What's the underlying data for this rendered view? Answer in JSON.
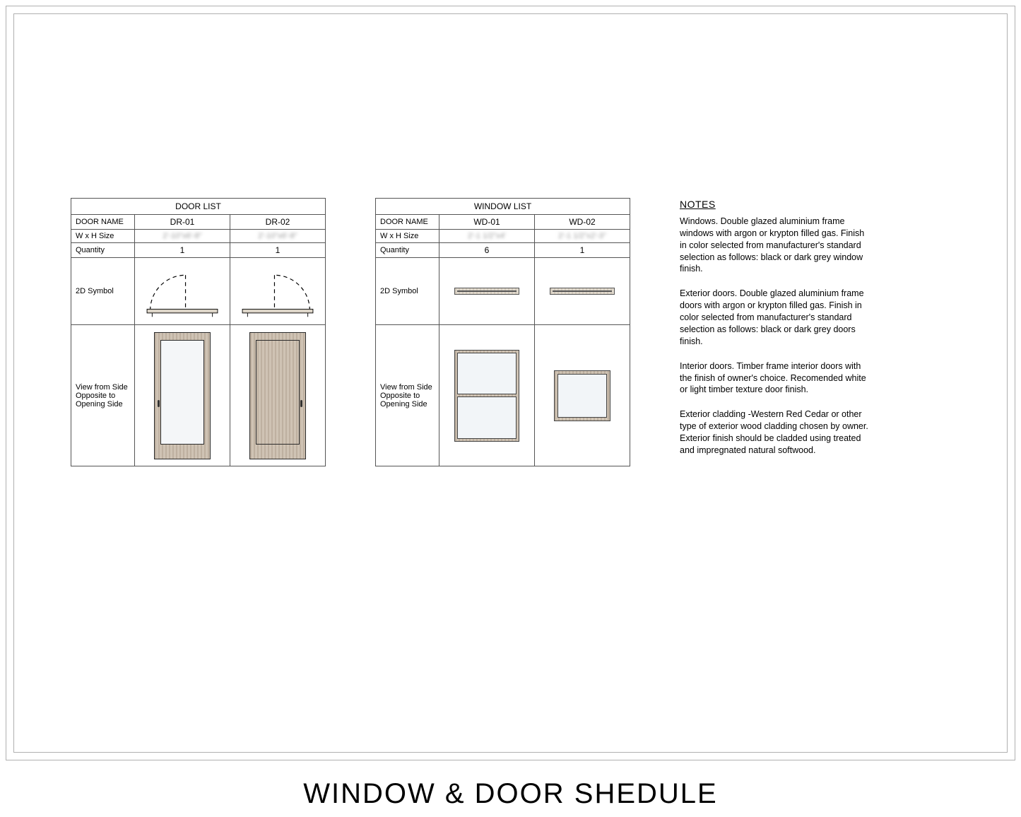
{
  "page_title": "WINDOW & DOOR SHEDULE",
  "door_table": {
    "title": "DOOR LIST",
    "row_labels": {
      "name": "DOOR NAME",
      "size": "W x H Size",
      "qty": "Quantity",
      "symbol": "2D Symbol",
      "view": "View from Side Opposite to Opening Side"
    },
    "columns": [
      {
        "name": "DR-01",
        "size": "2'-10\"x6'-8\"",
        "qty": "1",
        "swing": "left",
        "glass": true
      },
      {
        "name": "DR-02",
        "size": "2'-10\"x6'-8\"",
        "qty": "1",
        "swing": "right",
        "glass": false
      }
    ]
  },
  "window_table": {
    "title": "WINDOW LIST",
    "row_labels": {
      "name": "DOOR NAME",
      "size": "W x H Size",
      "qty": "Quantity",
      "symbol": "2D Symbol",
      "view": "View from Side Opposite to Opening Side"
    },
    "columns": [
      {
        "name": "WD-01",
        "size": "2'-1 1/2\"x4'",
        "qty": "6",
        "win": "double"
      },
      {
        "name": "WD-02",
        "size": "2'-1 1/2\"x2'-3\"",
        "qty": "1",
        "win": "single"
      }
    ]
  },
  "notes": {
    "title": "NOTES",
    "paragraphs": [
      "Windows. Double glazed aluminium frame windows with argon or krypton filled gas. Finish in color selected from manufacturer's standard selection as follows: black or dark grey window finish.",
      " Exterior doors. Double glazed aluminium frame doors with argon or krypton filled gas. Finish in color selected from manufacturer's standard selection as follows: black or dark grey doors finish.",
      "Interior doors. Timber frame interior doors with the finish of owner's choice. Recomended white or light timber texture door finish.",
      "Exterior cladding -Western Red Cedar or other type of exterior wood cladding chosen by owner. Exterior finish should be cladded using treated and impregnated natural softwood."
    ]
  },
  "colors": {
    "border": "#555555",
    "wood_light": "#cfc3b4",
    "wood_dark": "#beb0a0",
    "glass": "#f2f5f8"
  }
}
